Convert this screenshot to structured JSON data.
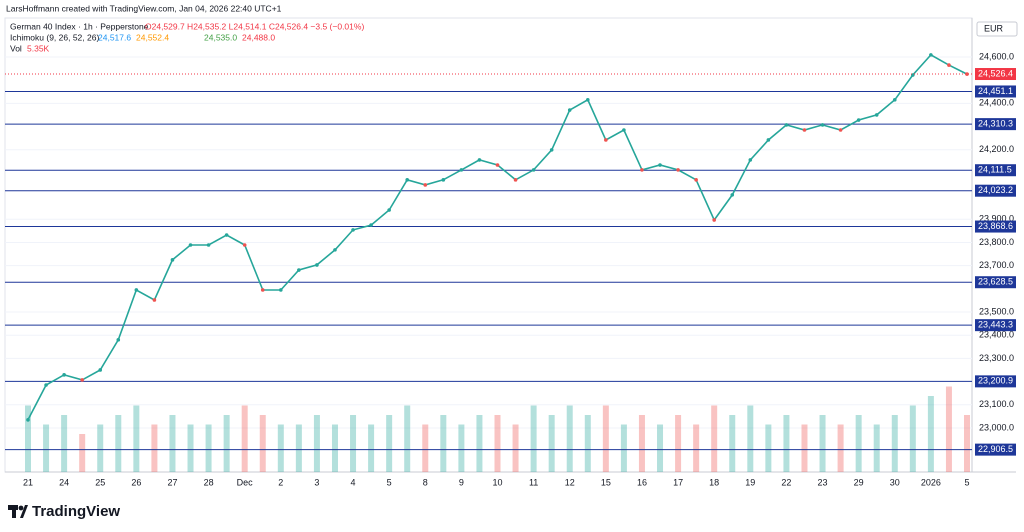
{
  "header": {
    "credit": "LarsHoffmann created with TradingView.com, Jan 04, 2026 22:40 UTC+1",
    "symbol": "German 40 Index · 1h · Pepperstone",
    "ohlc": "O24,529.7 H24,535.2 L24,514.1 C24,526.4 −3.5 (−0.01%)",
    "ichimoku": "Ichimoku (9, 26, 52, 26)",
    "ichimoku_values": [
      "24,517.6",
      "24,552.4",
      "24,535.0",
      "24,488.0"
    ],
    "volume_label": "Vol",
    "volume_value": "5.35K",
    "currency": "EUR",
    "brand": "TradingView"
  },
  "chart_data": {
    "type": "line",
    "categories": [
      "21",
      null,
      "24",
      null,
      "25",
      null,
      "26",
      null,
      "27",
      null,
      "28",
      null,
      "Dec",
      null,
      "2",
      null,
      "3",
      null,
      "4",
      null,
      "5",
      null,
      "8",
      null,
      "9",
      null,
      "10",
      null,
      "11",
      null,
      "12",
      null,
      "15",
      null,
      "16",
      null,
      "17",
      null,
      "18",
      null,
      "19",
      null,
      "22",
      null,
      "23",
      null,
      "29",
      null,
      "30",
      null,
      "2026",
      null,
      "5"
    ],
    "series": [
      {
        "name": "German 40 Index",
        "color": "#26a69a",
        "values": [
          23035,
          23185,
          23229,
          23207,
          23250,
          23380,
          23595,
          23552,
          23725,
          23789,
          23789,
          23832,
          23789,
          23595,
          23595,
          23681,
          23703,
          23768,
          23854,
          23875,
          23940,
          24070,
          24048,
          24070,
          24113,
          24156,
          24134,
          24070,
          24113,
          24199,
          24371,
          24415,
          24242,
          24285,
          24113,
          24134,
          24113,
          24070,
          23897,
          24005,
          24156,
          24242,
          24307,
          24285,
          24307,
          24285,
          24328,
          24350,
          24415,
          24522,
          24609,
          24565,
          24526
        ]
      },
      {
        "name": "Vol",
        "axis": "volume",
        "values": [
          7,
          5,
          6,
          4,
          5,
          6,
          7,
          5,
          6,
          5,
          5,
          6,
          7,
          6,
          5,
          5,
          6,
          5,
          6,
          5,
          6,
          7,
          5,
          6,
          5,
          6,
          6,
          5,
          7,
          6,
          7,
          6,
          7,
          5,
          6,
          5,
          6,
          5,
          7,
          6,
          7,
          5,
          6,
          5,
          6,
          5,
          6,
          5,
          6,
          7,
          8,
          9,
          6
        ]
      }
    ],
    "volume_lim": [
      0,
      10
    ],
    "ylim": [
      22810,
      24768
    ],
    "yticks": [
      {
        "value": 24600,
        "label": "24,600.0"
      },
      {
        "value": 24400,
        "label": "24,400.0"
      },
      {
        "value": 24200,
        "label": "24,200.0"
      },
      {
        "value": 23900,
        "label": "23,900.0"
      },
      {
        "value": 23800,
        "label": "23,800.0"
      },
      {
        "value": 23700,
        "label": "23,700.0"
      },
      {
        "value": 23500,
        "label": "23,500.0"
      },
      {
        "value": 23400,
        "label": "23,400.0"
      },
      {
        "value": 23300,
        "label": "23,300.0"
      },
      {
        "value": 23100,
        "label": "23,100.0"
      },
      {
        "value": 23000,
        "label": "23,000.0"
      }
    ],
    "levels": [
      {
        "value": 24451.1,
        "label": "24,451.1"
      },
      {
        "value": 24310.3,
        "label": "24,310.3"
      },
      {
        "value": 24111.5,
        "label": "24,111.5"
      },
      {
        "value": 24023.2,
        "label": "24,023.2"
      },
      {
        "value": 23868.6,
        "label": "23,868.6"
      },
      {
        "value": 23628.5,
        "label": "23,628.5"
      },
      {
        "value": 23443.3,
        "label": "23,443.3"
      },
      {
        "value": 23200.9,
        "label": "23,200.9"
      },
      {
        "value": 22906.5,
        "label": "22,906.5"
      }
    ],
    "level_color": "#1e3799",
    "last_price": {
      "value": 24526.4,
      "label": "24,526.4",
      "color": "#f23645"
    },
    "up_color": "#26a69a",
    "down_color": "#ef5350"
  }
}
